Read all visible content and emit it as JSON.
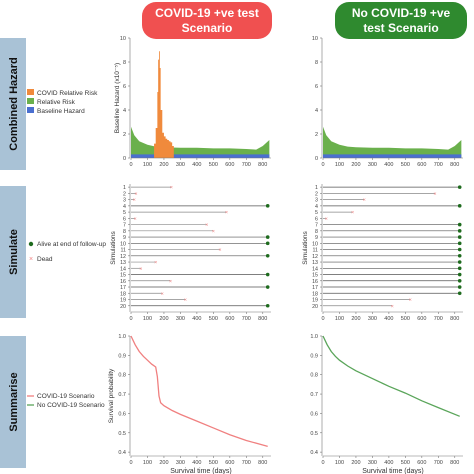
{
  "header": {
    "covid_title": "COVID-19 +ve test Scenario",
    "covid_line1": "COVID-19 +ve test",
    "covid_line2": "Scenario",
    "nocovid_title": "No COVID-19 +ve test Scenario",
    "nocovid_line1": "No COVID-19 +ve",
    "nocovid_line2": "test Scenario",
    "covid_color": "#f05050",
    "nocovid_color": "#2f8a2f"
  },
  "rows": [
    "Combined Hazard",
    "Simulate",
    "Summarise"
  ],
  "colors": {
    "covid_risk": "#f08a3c",
    "relative_risk": "#6ab04c",
    "baseline_hazard": "#4a6fd0",
    "covid_scenario": "#f08080",
    "nocovid_scenario": "#5aa55a",
    "alive_marker": "#1e6b1e",
    "dead_marker": "#f08080",
    "row_label_bg": "#a9c2d6"
  },
  "chart_data": [
    {
      "type": "area",
      "panel": "hazard-covid",
      "xlabel": "",
      "ylabel": "Baseline Hazard (x10⁻⁵)",
      "xlim": [
        0,
        850
      ],
      "ylim": [
        0,
        10
      ],
      "xticks": [
        0,
        100,
        200,
        300,
        400,
        500,
        600,
        700,
        800
      ],
      "yticks": [
        0,
        2,
        4,
        6,
        8,
        10
      ],
      "legend": [
        "COVID Relative Risk",
        "Relative Risk",
        "Baseline Hazard"
      ],
      "legend_position": "left",
      "baseline": {
        "x": [
          0,
          100,
          200,
          300,
          400,
          500,
          600,
          700,
          800,
          840
        ],
        "y": [
          0.3,
          0.3,
          0.3,
          0.3,
          0.3,
          0.3,
          0.3,
          0.3,
          0.3,
          0.3
        ]
      },
      "relative_risk": {
        "x": [
          0,
          20,
          50,
          100,
          150,
          200,
          300,
          400,
          500,
          600,
          700,
          760,
          800,
          840
        ],
        "y": [
          2.6,
          1.9,
          1.4,
          1.1,
          0.95,
          0.9,
          0.85,
          0.85,
          0.8,
          0.8,
          0.75,
          0.7,
          1.0,
          1.5
        ]
      },
      "covid_risk": {
        "x": [
          140,
          150,
          160,
          165,
          170,
          175,
          180,
          190,
          200,
          210,
          220,
          230,
          240,
          250
        ],
        "y": [
          1.2,
          2.5,
          5.5,
          8.2,
          8.9,
          7.5,
          4.0,
          2.1,
          1.8,
          1.6,
          1.5,
          1.4,
          1.3,
          1.0
        ]
      }
    },
    {
      "type": "area",
      "panel": "hazard-nocovid",
      "xlabel": "",
      "ylabel": "",
      "xlim": [
        0,
        850
      ],
      "ylim": [
        0,
        10
      ],
      "xticks": [
        0,
        100,
        200,
        300,
        400,
        500,
        600,
        700,
        800
      ],
      "yticks": [
        0,
        2,
        4,
        6,
        8,
        10
      ],
      "baseline": {
        "x": [
          0,
          100,
          200,
          300,
          400,
          500,
          600,
          700,
          800,
          840
        ],
        "y": [
          0.3,
          0.3,
          0.3,
          0.3,
          0.3,
          0.3,
          0.3,
          0.3,
          0.3,
          0.3
        ]
      },
      "relative_risk": {
        "x": [
          0,
          20,
          50,
          100,
          150,
          200,
          300,
          400,
          500,
          600,
          700,
          760,
          800,
          840
        ],
        "y": [
          2.6,
          1.9,
          1.4,
          1.1,
          0.95,
          0.9,
          0.85,
          0.85,
          0.8,
          0.8,
          0.75,
          0.7,
          1.0,
          1.5
        ]
      }
    },
    {
      "type": "scatter",
      "panel": "simulate-covid",
      "ylabel": "Simulations",
      "xlim": [
        0,
        850
      ],
      "xticks": [
        0,
        100,
        200,
        300,
        400,
        500,
        600,
        700,
        800
      ],
      "categories": [
        "1",
        "2",
        "3",
        "4",
        "5",
        "6",
        "7",
        "8",
        "9",
        "10",
        "11",
        "12",
        "13",
        "14",
        "15",
        "16",
        "17",
        "18",
        "19",
        "20"
      ],
      "legend": [
        "Alive at end of follow-up",
        "Dead"
      ],
      "legend_position": "left",
      "end_times": [
        245,
        30,
        20,
        830,
        580,
        25,
        460,
        500,
        830,
        830,
        540,
        830,
        150,
        60,
        830,
        240,
        830,
        190,
        330,
        830
      ],
      "alive": [
        false,
        false,
        false,
        true,
        false,
        false,
        false,
        false,
        true,
        true,
        false,
        true,
        false,
        false,
        true,
        false,
        true,
        false,
        false,
        true
      ]
    },
    {
      "type": "scatter",
      "panel": "simulate-nocovid",
      "ylabel": "Simulations",
      "xlim": [
        0,
        850
      ],
      "xticks": [
        0,
        100,
        200,
        300,
        400,
        500,
        600,
        700,
        800
      ],
      "categories": [
        "1",
        "2",
        "3",
        "4",
        "5",
        "6",
        "7",
        "8",
        "9",
        "10",
        "11",
        "12",
        "13",
        "14",
        "15",
        "16",
        "17",
        "18",
        "19",
        "20"
      ],
      "end_times": [
        830,
        680,
        250,
        830,
        180,
        20,
        830,
        830,
        830,
        830,
        830,
        830,
        830,
        830,
        830,
        830,
        830,
        830,
        530,
        420
      ],
      "alive": [
        true,
        false,
        false,
        true,
        false,
        false,
        true,
        true,
        true,
        true,
        true,
        true,
        true,
        true,
        true,
        true,
        true,
        true,
        false,
        false
      ]
    },
    {
      "type": "line",
      "panel": "survival-covid",
      "xlabel": "Survival time (days)",
      "ylabel": "Survival probability",
      "xlim": [
        0,
        850
      ],
      "ylim": [
        0.38,
        1.0
      ],
      "xticks": [
        0,
        100,
        200,
        300,
        400,
        500,
        600,
        700,
        800
      ],
      "yticks": [
        0.4,
        0.5,
        0.6,
        0.7,
        0.8,
        0.9,
        1.0
      ],
      "legend": [
        "COVID-19 Scenario",
        "No COVID-19 Scenario"
      ],
      "legend_position": "left",
      "series": [
        {
          "name": "COVID-19 Scenario",
          "x": [
            0,
            25,
            50,
            75,
            100,
            125,
            150,
            160,
            170,
            180,
            200,
            250,
            300,
            400,
            500,
            600,
            700,
            830
          ],
          "y": [
            1.0,
            0.955,
            0.92,
            0.895,
            0.875,
            0.855,
            0.84,
            0.79,
            0.69,
            0.655,
            0.64,
            0.615,
            0.595,
            0.56,
            0.525,
            0.49,
            0.46,
            0.43
          ]
        }
      ]
    },
    {
      "type": "line",
      "panel": "survival-nocovid",
      "xlabel": "Survival time (days)",
      "ylabel": "",
      "xlim": [
        0,
        850
      ],
      "ylim": [
        0.38,
        1.0
      ],
      "xticks": [
        0,
        100,
        200,
        300,
        400,
        500,
        600,
        700,
        800
      ],
      "yticks": [
        0.4,
        0.5,
        0.6,
        0.7,
        0.8,
        0.9,
        1.0
      ],
      "series": [
        {
          "name": "No COVID-19 Scenario",
          "x": [
            0,
            25,
            50,
            75,
            100,
            150,
            200,
            300,
            400,
            500,
            600,
            700,
            830
          ],
          "y": [
            1.0,
            0.955,
            0.92,
            0.895,
            0.875,
            0.845,
            0.82,
            0.78,
            0.74,
            0.705,
            0.665,
            0.63,
            0.585
          ]
        }
      ]
    }
  ]
}
